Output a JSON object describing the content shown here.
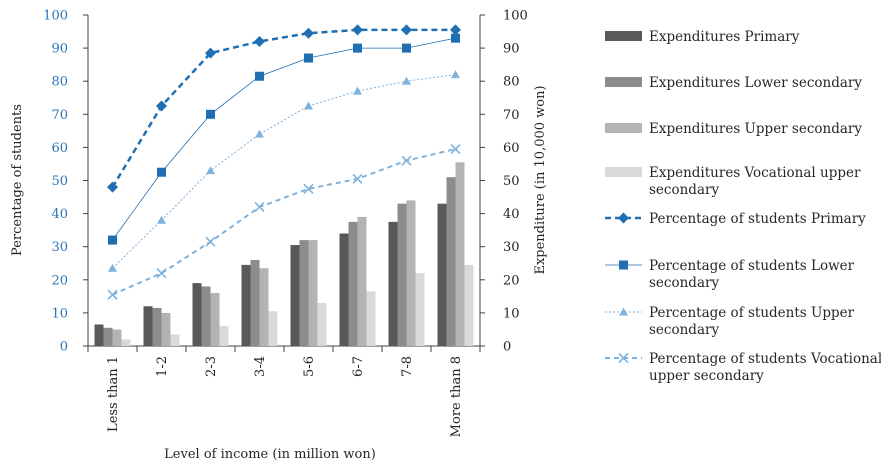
{
  "chart_data": {
    "type": "bar",
    "categories": [
      "Less than 1",
      "1-2",
      "2-3",
      "3-4",
      "5-6",
      "6-7",
      "7-8",
      "More than 8"
    ],
    "xlabel": "Level of income (in million won)",
    "ylabel_left": "Percentage of students",
    "ylabel_right": "Expenditure (in 10,000 won)",
    "ylim_left": [
      0,
      100
    ],
    "ylim_right": [
      0,
      100
    ],
    "yticks": [
      "0",
      "10",
      "20",
      "30",
      "40",
      "50",
      "60",
      "70",
      "80",
      "90",
      "100"
    ],
    "grid": false,
    "legend_position": "right",
    "bar_series": [
      {
        "name": "Expenditures Primary",
        "legend": [
          "Expenditures Primary"
        ],
        "color": "#595959",
        "values": [
          6.5,
          12,
          19,
          24.5,
          30.5,
          34,
          37.5,
          43
        ]
      },
      {
        "name": "Expenditures Lower secondary",
        "legend": [
          "Expenditures Lower secondary"
        ],
        "color": "#8c8c8c",
        "values": [
          5.5,
          11.5,
          18,
          26,
          32,
          37.5,
          43,
          51
        ]
      },
      {
        "name": "Expenditures Upper secondary",
        "legend": [
          "Expenditures Upper secondary"
        ],
        "color": "#b3b3b3",
        "values": [
          5,
          10,
          16,
          23.5,
          32,
          39,
          44,
          55.5
        ]
      },
      {
        "name": "Expenditures Vocational upper secondary",
        "legend": [
          "Expenditures Vocational upper",
          "secondary"
        ],
        "color": "#d9d9d9",
        "values": [
          2,
          3.5,
          6,
          10.5,
          13,
          16.5,
          22,
          24.5
        ]
      }
    ],
    "line_series": [
      {
        "name": "Percentage of students Primary",
        "legend": [
          "Percentage of students Primary"
        ],
        "color": "#1f6fb2",
        "dash": "6,4",
        "width": 2.5,
        "marker": "diamond",
        "values": [
          48,
          72.5,
          88.5,
          92,
          94.5,
          95.5,
          95.5,
          95.5
        ]
      },
      {
        "name": "Percentage of students Lower secondary",
        "legend": [
          "Percentage of students Lower",
          "secondary"
        ],
        "color": "#1f6fb2",
        "dash": "",
        "width": 0.8,
        "marker": "square",
        "values": [
          32,
          52.5,
          70,
          81.5,
          87,
          90,
          90,
          93
        ]
      },
      {
        "name": "Percentage of students Upper secondary",
        "legend": [
          "Percentage of students Upper",
          "secondary"
        ],
        "color": "#7fb2dc",
        "dash": "2,2",
        "width": 1,
        "marker": "triangle",
        "values": [
          23.5,
          38,
          53,
          64,
          72.5,
          77,
          80,
          82
        ]
      },
      {
        "name": "Percentage of students Vocational upper secondary",
        "legend": [
          "Percentage of students Vocational",
          "upper secondary"
        ],
        "color": "#7fb2dc",
        "dash": "5,4",
        "width": 2,
        "marker": "x",
        "values": [
          15.5,
          22,
          31.5,
          42,
          47.5,
          50.5,
          56,
          59.5
        ]
      }
    ]
  }
}
